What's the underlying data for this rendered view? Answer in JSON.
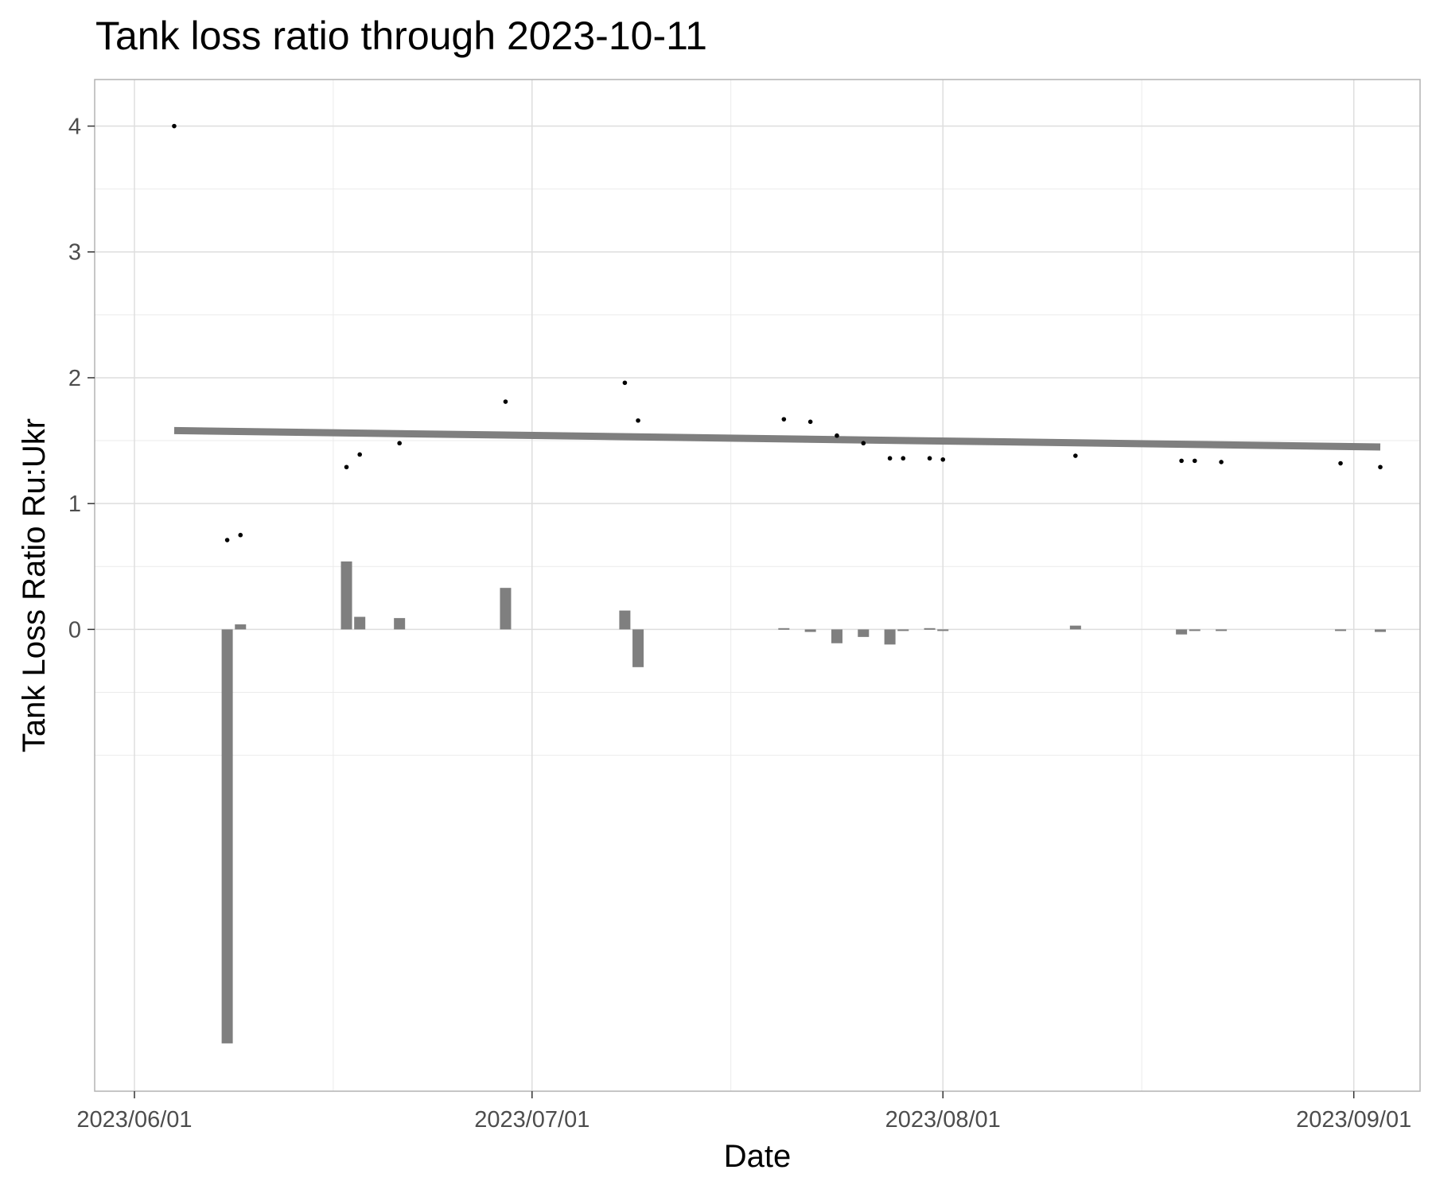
{
  "chart_data": {
    "type": "bar",
    "title": "Tank loss ratio through 2023-10-11",
    "xlabel": "Date",
    "ylabel": "Tank Loss Ratio Ru:Ukr",
    "x_axis_type": "date",
    "x_range": [
      "2023-05-29",
      "2023-09-06"
    ],
    "ylim": [
      -3.67,
      4.37
    ],
    "x_ticks": [
      {
        "date": "2023-06-01",
        "label": "2023/06/01"
      },
      {
        "date": "2023-07-01",
        "label": "2023/07/01"
      },
      {
        "date": "2023-08-01",
        "label": "2023/08/01"
      },
      {
        "date": "2023-09-01",
        "label": "2023/09/01"
      }
    ],
    "x_minor_ticks": [
      "2023-06-16",
      "2023-07-16",
      "2023-08-16"
    ],
    "y_ticks": [
      0,
      1,
      2,
      3,
      4
    ],
    "y_minor_ticks": [
      -1,
      -0.5,
      0.5,
      1.5,
      2.5,
      3.5
    ],
    "grid": true,
    "legend": "none",
    "points": [
      {
        "date": "2023-06-04",
        "value": 4.0
      },
      {
        "date": "2023-06-08",
        "value": 0.71
      },
      {
        "date": "2023-06-09",
        "value": 0.75
      },
      {
        "date": "2023-06-17",
        "value": 1.29
      },
      {
        "date": "2023-06-18",
        "value": 1.39
      },
      {
        "date": "2023-06-21",
        "value": 1.48
      },
      {
        "date": "2023-06-29",
        "value": 1.81
      },
      {
        "date": "2023-07-08",
        "value": 1.96
      },
      {
        "date": "2023-07-09",
        "value": 1.66
      },
      {
        "date": "2023-07-20",
        "value": 1.67
      },
      {
        "date": "2023-07-22",
        "value": 1.65
      },
      {
        "date": "2023-07-24",
        "value": 1.54
      },
      {
        "date": "2023-07-26",
        "value": 1.48
      },
      {
        "date": "2023-07-28",
        "value": 1.36
      },
      {
        "date": "2023-07-29",
        "value": 1.36
      },
      {
        "date": "2023-07-31",
        "value": 1.36
      },
      {
        "date": "2023-08-01",
        "value": 1.35
      },
      {
        "date": "2023-08-11",
        "value": 1.38
      },
      {
        "date": "2023-08-19",
        "value": 1.34
      },
      {
        "date": "2023-08-20",
        "value": 1.34
      },
      {
        "date": "2023-08-22",
        "value": 1.33
      },
      {
        "date": "2023-08-31",
        "value": 1.32
      },
      {
        "date": "2023-09-03",
        "value": 1.29
      }
    ],
    "bars": [
      {
        "date": "2023-06-08",
        "value": -3.29
      },
      {
        "date": "2023-06-09",
        "value": 0.04
      },
      {
        "date": "2023-06-17",
        "value": 0.54
      },
      {
        "date": "2023-06-18",
        "value": 0.1
      },
      {
        "date": "2023-06-21",
        "value": 0.09
      },
      {
        "date": "2023-06-29",
        "value": 0.33
      },
      {
        "date": "2023-07-08",
        "value": 0.15
      },
      {
        "date": "2023-07-09",
        "value": -0.3
      },
      {
        "date": "2023-07-20",
        "value": 0.01
      },
      {
        "date": "2023-07-22",
        "value": -0.02
      },
      {
        "date": "2023-07-24",
        "value": -0.11
      },
      {
        "date": "2023-07-26",
        "value": -0.06
      },
      {
        "date": "2023-07-28",
        "value": -0.12
      },
      {
        "date": "2023-07-29",
        "value": -0.01
      },
      {
        "date": "2023-07-31",
        "value": 0.01
      },
      {
        "date": "2023-08-01",
        "value": -0.01
      },
      {
        "date": "2023-08-11",
        "value": 0.03
      },
      {
        "date": "2023-08-19",
        "value": -0.04
      },
      {
        "date": "2023-08-20",
        "value": -0.01
      },
      {
        "date": "2023-08-22",
        "value": -0.01
      },
      {
        "date": "2023-08-31",
        "value": -0.01
      },
      {
        "date": "2023-09-03",
        "value": -0.02
      }
    ],
    "trend": {
      "start": {
        "date": "2023-06-04",
        "value": 1.58
      },
      "end": {
        "date": "2023-09-03",
        "value": 1.45
      }
    },
    "colors": {
      "bar": "#7f7f7f",
      "trend": "#7f7f7f",
      "point": "#000000",
      "grid_major": "#dedede",
      "grid_minor": "#ebebeb",
      "panel_border": "#b3b3b3"
    }
  }
}
